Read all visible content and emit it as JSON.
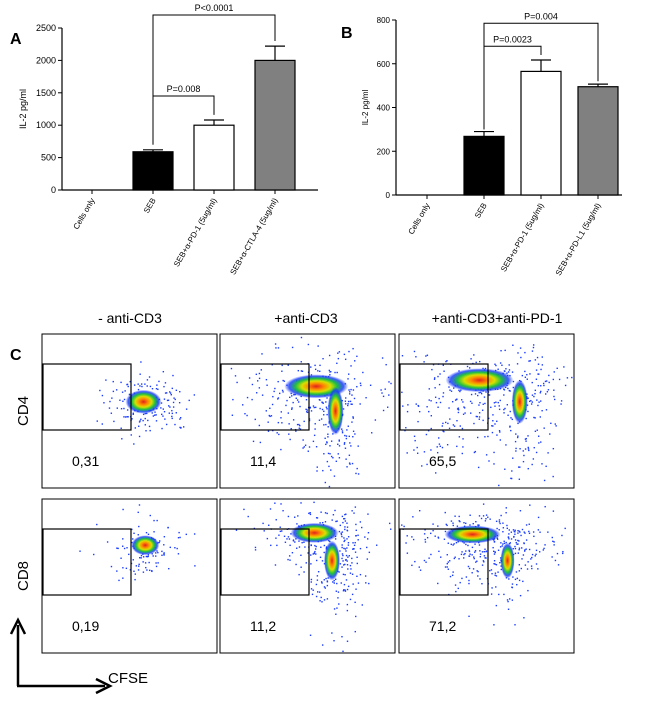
{
  "chart_data": [
    {
      "panel": "A",
      "type": "bar",
      "ylabel": "IL-2 pg/ml",
      "ylim": [
        0,
        2500
      ],
      "yticks": [
        0,
        500,
        1000,
        1500,
        2000,
        2500
      ],
      "categories": [
        "Cells only",
        "SEB",
        "SEB+α-PD-1 (5ug/ml)",
        "SEB+α-CTLA-4 (5ug/ml)"
      ],
      "values": [
        0,
        590,
        1000,
        2000
      ],
      "errors": [
        0,
        30,
        80,
        220
      ],
      "fills": [
        "#000000",
        "#000000",
        "#ffffff",
        "#808080"
      ],
      "comparisons": [
        {
          "from": 1,
          "to": 2,
          "label": "P=0.008"
        },
        {
          "from": 1,
          "to": 3,
          "label": "P<0.0001"
        }
      ]
    },
    {
      "panel": "B",
      "type": "bar",
      "ylabel": "IL-2 pg/ml",
      "ylim": [
        0,
        800
      ],
      "yticks": [
        0,
        200,
        400,
        600,
        800
      ],
      "categories": [
        "Cells only",
        "SEB",
        "SEB+α-PD-1 (5ug/ml)",
        "SEB+α-PD-L1 (5ug/ml)"
      ],
      "values": [
        0,
        268,
        565,
        495
      ],
      "errors": [
        0,
        22,
        52,
        12
      ],
      "fills": [
        "#000000",
        "#000000",
        "#ffffff",
        "#808080"
      ],
      "comparisons": [
        {
          "from": 1,
          "to": 2,
          "label": "P=0.0023"
        },
        {
          "from": 1,
          "to": 3,
          "label": "P=0.004"
        }
      ]
    },
    {
      "panel": "C",
      "type": "scatter",
      "columns": [
        "- anti-CD3",
        "+anti-CD3",
        "+anti-CD3+anti-PD-1"
      ],
      "rows": [
        "CD4",
        "CD8"
      ],
      "gate_percentages": [
        [
          "0,31",
          "11,4",
          "65,5"
        ],
        [
          "0,19",
          "11,2",
          "71,2"
        ]
      ],
      "x_axis_label": "CFSE"
    }
  ]
}
